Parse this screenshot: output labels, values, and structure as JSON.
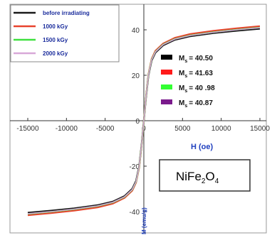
{
  "chart_data": {
    "type": "line",
    "xlabel": "H (oe)",
    "ylabel": "M (emu/g)",
    "xlim": [
      -17000,
      17000
    ],
    "ylim": [
      -48,
      48
    ],
    "xticks": [
      -15000,
      -10000,
      -5000,
      0,
      5000,
      10000,
      15000
    ],
    "xtick_labels": [
      "-15000",
      "-10000",
      "-5000",
      "0",
      "5000",
      "10000",
      "15000"
    ],
    "yticks": [
      -40,
      -20,
      0,
      20,
      40
    ],
    "ytick_labels": [
      "-40",
      "-20",
      "0",
      "20",
      "40"
    ],
    "x": [
      -15000,
      -12000,
      -9000,
      -6000,
      -4000,
      -2500,
      -1500,
      -1000,
      -600,
      -300,
      -150,
      0,
      150,
      300,
      600,
      1000,
      1500,
      2500,
      4000,
      6000,
      9000,
      12000,
      15000
    ],
    "series": [
      {
        "name": "before irradiating",
        "color": "#1a1a1a",
        "values": [
          -40.5,
          -39.6,
          -38.6,
          -37.2,
          -35.6,
          -33.2,
          -30.0,
          -26.5,
          -20.0,
          -11.0,
          -5.5,
          0,
          5.5,
          11.0,
          20.0,
          26.5,
          30.0,
          33.2,
          35.6,
          37.2,
          38.6,
          39.6,
          40.5
        ]
      },
      {
        "name": "1000 kGy",
        "color": "#e8432e",
        "values": [
          -41.6,
          -40.7,
          -39.6,
          -38.2,
          -36.5,
          -34.0,
          -30.8,
          -27.2,
          -20.6,
          -11.4,
          -5.7,
          0,
          5.7,
          11.4,
          20.6,
          27.2,
          30.8,
          34.0,
          36.5,
          38.2,
          39.6,
          40.7,
          41.6
        ]
      },
      {
        "name": "1500 kGy",
        "color": "#3fe03f",
        "values": [
          -41.0,
          -40.1,
          -39.0,
          -37.6,
          -36.0,
          -33.6,
          -30.4,
          -26.9,
          -20.3,
          -11.2,
          -5.6,
          0,
          5.6,
          11.2,
          20.3,
          26.9,
          30.4,
          33.6,
          36.0,
          37.6,
          39.0,
          40.1,
          41.0
        ]
      },
      {
        "name": "2000 kGy",
        "color": "#d8a8d8",
        "values": [
          -40.9,
          -40.0,
          -38.9,
          -37.5,
          -35.9,
          -33.5,
          -30.3,
          -26.8,
          -20.2,
          -11.1,
          -5.5,
          0,
          5.5,
          11.1,
          20.2,
          26.8,
          30.3,
          33.5,
          35.9,
          37.5,
          38.9,
          40.0,
          40.9
        ]
      }
    ],
    "legend_placement": "top-left",
    "grid": false,
    "ms_annotations": [
      {
        "label": "M",
        "sub": "s",
        "value": "= 40.50",
        "color": "#000000"
      },
      {
        "label": "M",
        "sub": "s",
        "value": "= 41.63",
        "color": "#ff1a1a"
      },
      {
        "label": "M",
        "sub": "s",
        "value": "= 40 .98",
        "color": "#33ff33"
      },
      {
        "label": "M",
        "sub": "s",
        "value": "= 40.87",
        "color": "#7a1a8c"
      }
    ],
    "sample_label": {
      "main": "NiFe",
      "sub1": "2",
      "mid": "O",
      "sub2": "4"
    }
  },
  "colors": {
    "axis": "#333333",
    "box_border": "#888888",
    "label_blue": "#1f3fbf"
  }
}
